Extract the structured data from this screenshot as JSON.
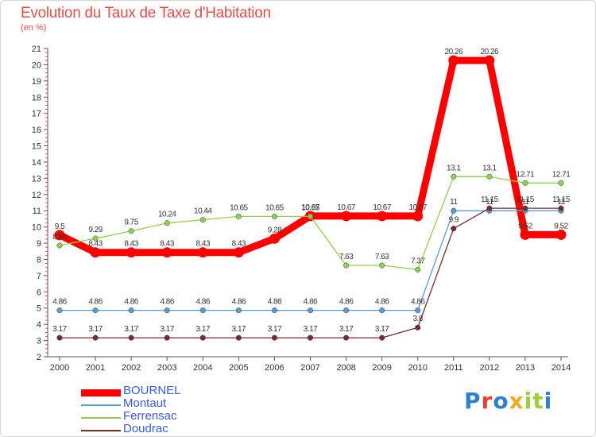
{
  "title": "Evolution du Taux de Taxe d'Habitation",
  "unit_label": "(en %)",
  "logo": {
    "text": "Proxiti",
    "colors": [
      "#2f7fd1",
      "#e8402a",
      "#2f7fd1",
      "#f2a81d",
      "#9ccf3a",
      "#9ccf3a",
      "#2f7fd1"
    ]
  },
  "chart_data": {
    "type": "line",
    "x": [
      "2000",
      "2001",
      "2002",
      "2003",
      "2004",
      "2005",
      "2006",
      "2007",
      "2008",
      "2009",
      "2010",
      "2011",
      "2012",
      "2013",
      "2014"
    ],
    "ylim": [
      2,
      21
    ],
    "yticks": [
      2,
      3,
      4,
      5,
      6,
      7,
      8,
      9,
      10,
      11,
      12,
      13,
      14,
      15,
      16,
      17,
      18,
      19,
      20,
      21
    ],
    "grid": false,
    "legend": "bottom-left",
    "series": [
      {
        "name": "BOURNEL",
        "color": "#ff0000",
        "width": 9,
        "values": [
          9.5,
          8.43,
          8.43,
          8.43,
          8.43,
          8.43,
          9.28,
          10.67,
          10.67,
          10.67,
          10.67,
          20.26,
          20.26,
          9.52,
          9.52
        ],
        "labels": [
          "9.5",
          "8.43",
          "8.43",
          "8.43",
          "8.43",
          "8.43",
          "9.28",
          "10.67",
          "10.67",
          "10.67",
          "10.67",
          "20.26",
          "20.26",
          "9.52",
          "9.52"
        ]
      },
      {
        "name": "Montaut",
        "color": "#5b9bd5",
        "width": 1.3,
        "values": [
          4.86,
          4.86,
          4.86,
          4.86,
          4.86,
          4.86,
          4.86,
          4.86,
          4.86,
          4.86,
          4.86,
          11,
          11,
          11,
          11
        ],
        "labels": [
          "4.86",
          "4.86",
          "4.86",
          "4.86",
          "4.86",
          "4.86",
          "4.86",
          "4.86",
          "4.86",
          "4.86",
          "4.86",
          "11",
          "11",
          "11",
          "11"
        ]
      },
      {
        "name": "Ferrensac",
        "color": "#8fd14f",
        "width": 1.3,
        "values": [
          8.86,
          9.29,
          9.75,
          10.24,
          10.44,
          10.65,
          10.65,
          10.65,
          7.63,
          7.63,
          7.37,
          13.1,
          13.1,
          12.71,
          12.71
        ],
        "labels": [
          "8.86",
          "9.29",
          "9.75",
          "10.24",
          "10.44",
          "10.65",
          "10.65",
          "10.65",
          "7.63",
          "7.63",
          "7.37",
          "13.1",
          "13.1",
          "12.71",
          "12.71"
        ]
      },
      {
        "name": "Doudrac",
        "color": "#7a2a2a",
        "width": 1.3,
        "values": [
          3.17,
          3.17,
          3.17,
          3.17,
          3.17,
          3.17,
          3.17,
          3.17,
          3.17,
          3.17,
          3.8,
          9.9,
          11.15,
          11.15,
          11.15
        ],
        "labels": [
          "3.17",
          "3.17",
          "3.17",
          "3.17",
          "3.17",
          "3.17",
          "3.17",
          "3.17",
          "3.17",
          "3.17",
          "3.8",
          "9.9",
          "11.15",
          "11.15",
          "11.15"
        ]
      }
    ]
  }
}
